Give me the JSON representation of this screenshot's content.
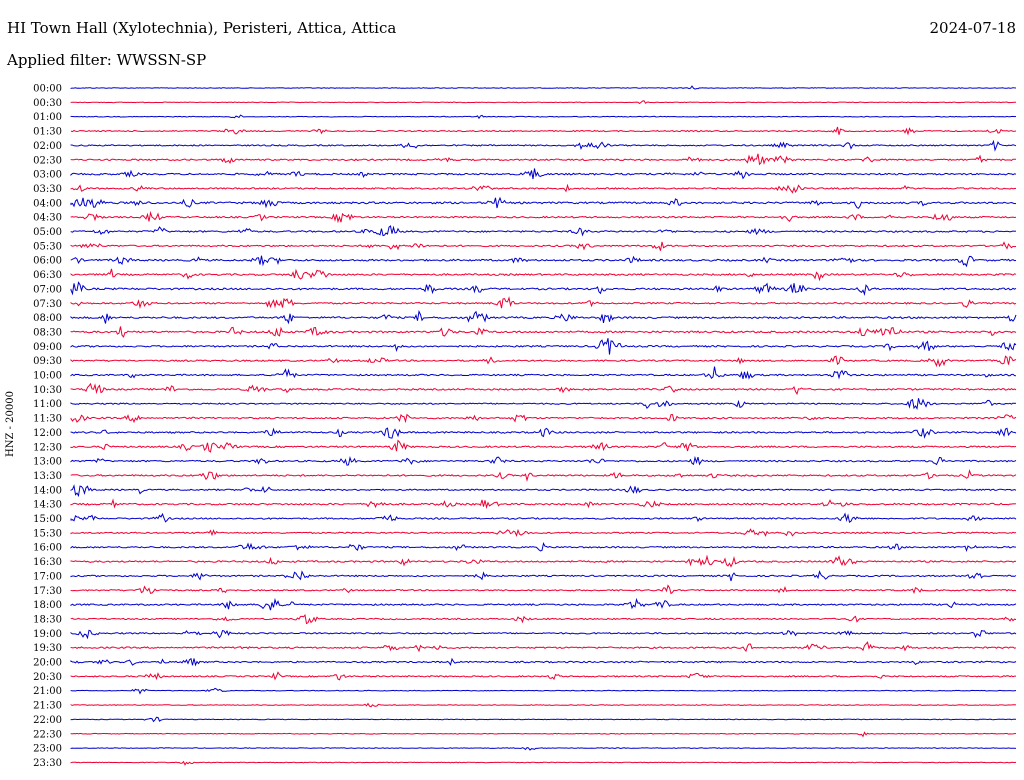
{
  "header": {
    "title": "HI Town Hall (Xylotechnia), Peristeri, Attica, Attica",
    "date": "2024-07-18",
    "filter": "Applied filter: WWSSN-SP"
  },
  "chart_data": {
    "type": "line",
    "title": "HI Town Hall (Xylotechnia), Peristeri, Attica, Attica",
    "ylabel": "HNZ - 20000",
    "xlabel": "",
    "row_labels": [
      "00:00",
      "00:30",
      "01:00",
      "01:30",
      "02:00",
      "02:30",
      "03:00",
      "03:30",
      "04:00",
      "04:30",
      "05:00",
      "05:30",
      "06:00",
      "06:30",
      "07:00",
      "07:30",
      "08:00",
      "08:30",
      "09:00",
      "09:30",
      "10:00",
      "10:30",
      "11:00",
      "11:30",
      "12:00",
      "12:30",
      "13:00",
      "13:30",
      "14:00",
      "14:30",
      "15:00",
      "15:30",
      "16:00",
      "16:30",
      "17:00",
      "17:30",
      "18:00",
      "18:30",
      "19:00",
      "19:30",
      "20:00",
      "20:30",
      "21:00",
      "21:30",
      "22:00",
      "22:30",
      "23:00",
      "23:30"
    ],
    "colors": [
      "#0000cc",
      "#ee0033"
    ],
    "grid": false,
    "legend": "none",
    "activity": [
      0.05,
      0.08,
      0.12,
      0.35,
      0.45,
      0.55,
      0.6,
      0.5,
      0.75,
      0.55,
      0.6,
      0.55,
      0.7,
      0.65,
      0.7,
      0.55,
      0.7,
      0.75,
      0.6,
      0.55,
      0.55,
      0.6,
      0.45,
      0.55,
      0.6,
      0.6,
      0.55,
      0.6,
      0.5,
      0.65,
      0.5,
      0.45,
      0.55,
      0.6,
      0.5,
      0.45,
      0.55,
      0.45,
      0.5,
      0.55,
      0.5,
      0.45,
      0.12,
      0.1,
      0.08,
      0.1,
      0.08,
      0.08
    ]
  }
}
